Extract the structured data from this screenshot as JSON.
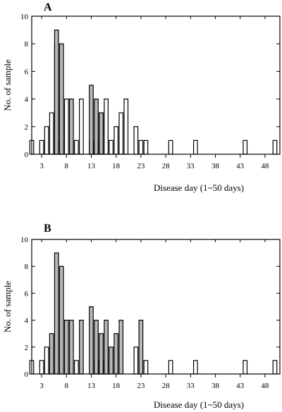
{
  "chart_data": [
    {
      "type": "bar",
      "panel_label": "A",
      "xlabel": "Disease day (1~50 days)",
      "ylabel": "No. of sample",
      "xlim": [
        1,
        51
      ],
      "ylim": [
        0,
        10
      ],
      "x_ticks": [
        3,
        8,
        13,
        18,
        23,
        28,
        33,
        38,
        43,
        48
      ],
      "y_ticks": [
        0,
        2,
        4,
        6,
        8,
        10
      ],
      "grid": false,
      "legend": "none",
      "colors": {
        "outline": "#000000",
        "white_bar": "#ffffff",
        "grey_bar": "#b9b9b9"
      },
      "series": [
        {
          "color": "#ffffff",
          "x": [
            1,
            2,
            3,
            4,
            5,
            6,
            7,
            8,
            9,
            10,
            11,
            12,
            13,
            14,
            15,
            16,
            17,
            18,
            19,
            20,
            21,
            22,
            23,
            24,
            26,
            29,
            34,
            44,
            50
          ],
          "values": [
            1,
            0,
            1,
            2,
            3,
            8,
            1,
            4,
            1,
            1,
            4,
            0,
            1,
            1,
            3,
            4,
            1,
            2,
            3,
            4,
            0,
            2,
            1,
            1,
            0,
            1,
            1,
            1,
            1
          ]
        },
        {
          "color": "#b9b9b9",
          "x": [
            6,
            7,
            9,
            13,
            14,
            15
          ],
          "values": [
            9,
            8,
            4,
            5,
            4,
            3
          ]
        }
      ]
    },
    {
      "type": "bar",
      "panel_label": "B",
      "xlabel": "Disease day (1~50 days)",
      "ylabel": "No. of sample",
      "xlim": [
        1,
        51
      ],
      "ylim": [
        0,
        10
      ],
      "x_ticks": [
        3,
        8,
        13,
        18,
        23,
        28,
        33,
        38,
        43,
        48
      ],
      "y_ticks": [
        0,
        2,
        4,
        6,
        8,
        10
      ],
      "grid": false,
      "legend": "none",
      "colors": {
        "outline": "#000000",
        "white_bar": "#ffffff",
        "grey_bar": "#b9b9b9"
      },
      "series": [
        {
          "color": "#ffffff",
          "x": [
            1,
            2,
            3,
            4,
            10,
            14,
            15,
            16,
            22,
            24,
            29,
            34,
            44,
            50
          ],
          "values": [
            1,
            0,
            1,
            2,
            1,
            1,
            1,
            1,
            2,
            1,
            1,
            1,
            1,
            1
          ]
        },
        {
          "color": "#b9b9b9",
          "x": [
            5,
            6,
            7,
            8,
            9,
            11,
            13,
            14,
            15,
            16,
            17,
            18,
            19,
            23
          ],
          "values": [
            3,
            9,
            8,
            4,
            4,
            4,
            5,
            4,
            3,
            4,
            2,
            3,
            4,
            4
          ]
        }
      ]
    }
  ]
}
